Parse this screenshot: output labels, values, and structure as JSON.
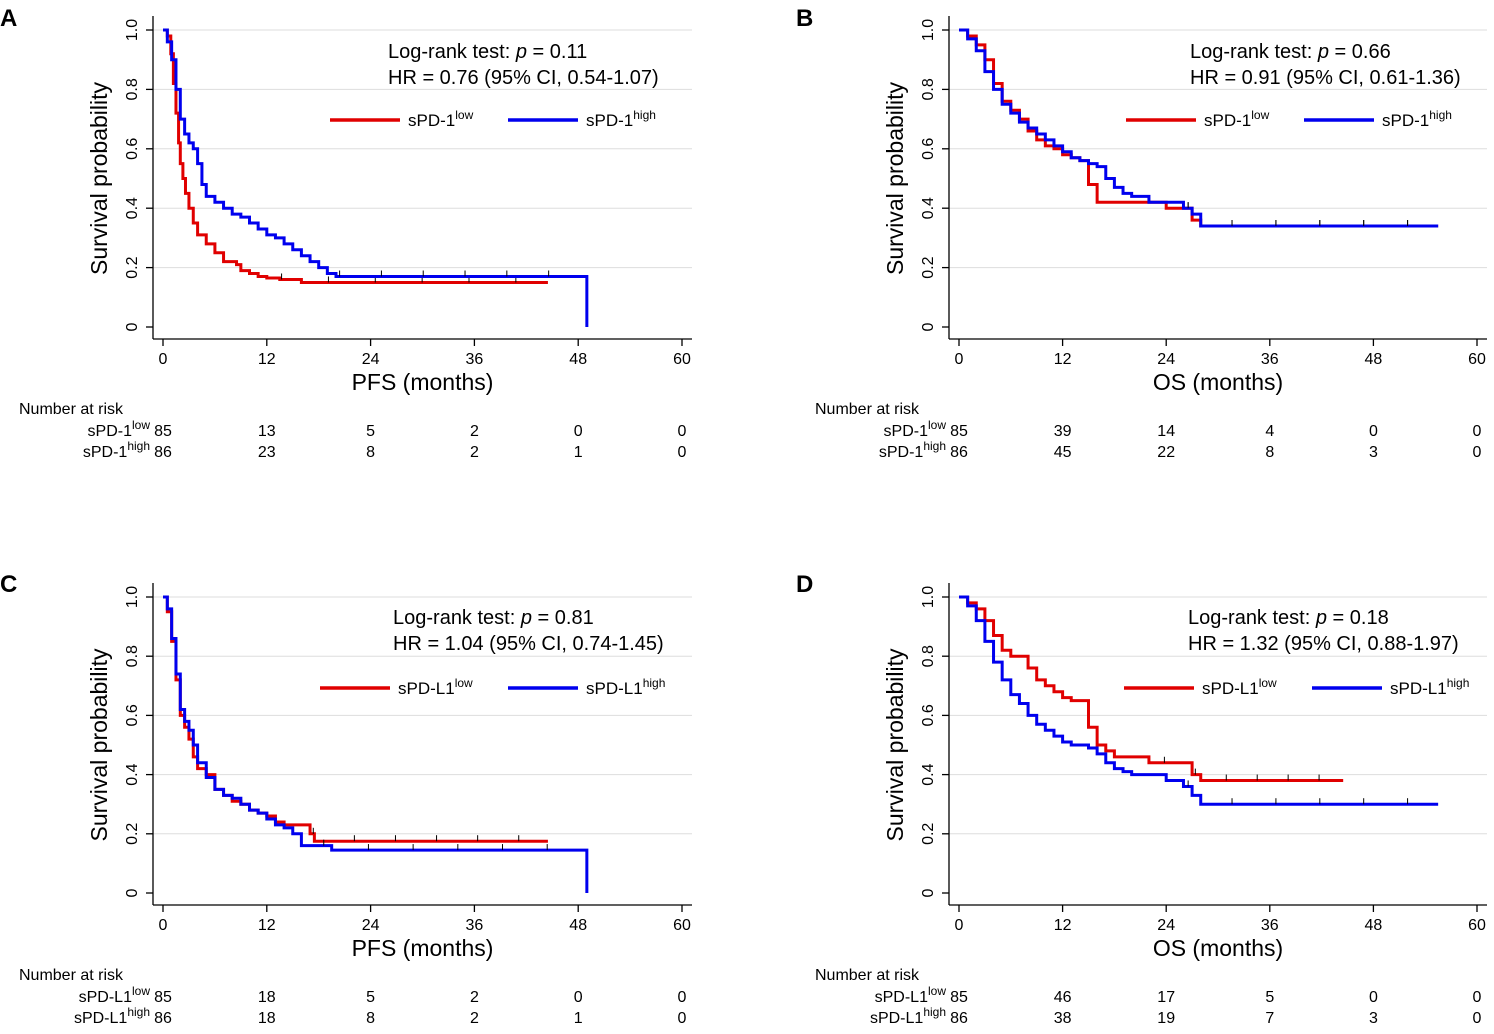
{
  "chart_data": [
    {
      "panel": "A",
      "type": "line",
      "subtype": "kaplan-meier",
      "xlabel": "PFS (months)",
      "ylabel": "Survival probability",
      "xlim": [
        0,
        60
      ],
      "ylim": [
        0,
        1
      ],
      "xticks": [
        "0",
        "12",
        "24",
        "36",
        "48",
        "60"
      ],
      "yticks": [
        "0",
        "0.2",
        "0.4",
        "0.6",
        "0.8",
        "1.0"
      ],
      "stat_line1_prefix": "Log-rank test: ",
      "stat_p_label": "p",
      "stat_line1_value": " = 0.11",
      "stat_line2": "HR = 0.76 (95% CI, 0.54-1.07)",
      "legend_position": "top-right",
      "series": [
        {
          "name": "sPD-1",
          "sup": "low",
          "color": "#e00000",
          "x": [
            0,
            0.5,
            0.9,
            1.2,
            1.5,
            1.8,
            2.0,
            2.3,
            2.6,
            3.0,
            3.5,
            4.0,
            5.0,
            6.0,
            7.0,
            8.5,
            9.0,
            10.0,
            11.0,
            12.0,
            13.5,
            16.0,
            44.5
          ],
          "y": [
            1.0,
            0.98,
            0.92,
            0.82,
            0.72,
            0.62,
            0.55,
            0.5,
            0.45,
            0.4,
            0.35,
            0.31,
            0.28,
            0.25,
            0.22,
            0.21,
            0.19,
            0.18,
            0.17,
            0.165,
            0.16,
            0.15,
            0.15
          ]
        },
        {
          "name": "sPD-1",
          "sup": "high",
          "color": "#0000ee",
          "x": [
            0,
            0.5,
            1.0,
            1.5,
            2.0,
            2.5,
            3.0,
            3.5,
            4.0,
            4.5,
            5.0,
            6.0,
            7.0,
            8.0,
            9.0,
            10.0,
            11.0,
            12.0,
            13.0,
            14.0,
            15.0,
            16.0,
            17.0,
            18.0,
            19.0,
            20.0,
            49.0,
            49.0
          ],
          "y": [
            1.0,
            0.96,
            0.9,
            0.8,
            0.7,
            0.65,
            0.62,
            0.6,
            0.55,
            0.48,
            0.44,
            0.42,
            0.4,
            0.38,
            0.37,
            0.35,
            0.33,
            0.31,
            0.3,
            0.28,
            0.26,
            0.24,
            0.22,
            0.2,
            0.18,
            0.17,
            0.17,
            0.0
          ]
        }
      ],
      "risk_table": {
        "title": "Number at risk",
        "rows": [
          {
            "name": "sPD-1",
            "sup": "low",
            "values": [
              "85",
              "13",
              "5",
              "2",
              "0",
              "0"
            ]
          },
          {
            "name": "sPD-1",
            "sup": "high",
            "values": [
              "86",
              "23",
              "8",
              "2",
              "1",
              "0"
            ]
          }
        ]
      }
    },
    {
      "panel": "B",
      "type": "line",
      "subtype": "kaplan-meier",
      "xlabel": "OS (months)",
      "ylabel": "Survival probability",
      "xlim": [
        0,
        60
      ],
      "ylim": [
        0,
        1
      ],
      "xticks": [
        "0",
        "12",
        "24",
        "36",
        "48",
        "60"
      ],
      "yticks": [
        "0",
        "0.2",
        "0.4",
        "0.6",
        "0.8",
        "1.0"
      ],
      "stat_line1_prefix": "Log-rank test: ",
      "stat_p_label": "p",
      "stat_line1_value": " = 0.66",
      "stat_line2": "HR = 0.91 (95% CI, 0.61-1.36)",
      "legend_position": "top-right",
      "series": [
        {
          "name": "sPD-1",
          "sup": "low",
          "color": "#e00000",
          "x": [
            0,
            1,
            2,
            3,
            4,
            5,
            6,
            7,
            8,
            9,
            10,
            11,
            12,
            13,
            14,
            15,
            16,
            18,
            20,
            22,
            24,
            26,
            27,
            28,
            55.5
          ],
          "y": [
            1.0,
            0.98,
            0.95,
            0.9,
            0.82,
            0.76,
            0.73,
            0.7,
            0.66,
            0.63,
            0.61,
            0.6,
            0.58,
            0.57,
            0.56,
            0.48,
            0.42,
            0.42,
            0.42,
            0.42,
            0.4,
            0.4,
            0.36,
            0.34,
            0.34
          ]
        },
        {
          "name": "sPD-1",
          "sup": "high",
          "color": "#0000ee",
          "x": [
            0,
            1,
            2,
            3,
            4,
            5,
            6,
            7,
            8,
            9,
            10,
            11,
            12,
            13,
            14,
            15,
            16,
            17,
            18,
            19,
            20,
            22,
            24,
            26,
            27,
            28,
            55.5
          ],
          "y": [
            1.0,
            0.97,
            0.93,
            0.86,
            0.8,
            0.75,
            0.72,
            0.69,
            0.67,
            0.65,
            0.63,
            0.61,
            0.59,
            0.57,
            0.56,
            0.55,
            0.54,
            0.5,
            0.47,
            0.45,
            0.44,
            0.42,
            0.42,
            0.4,
            0.38,
            0.34,
            0.34
          ]
        }
      ],
      "risk_table": {
        "title": "Number at risk",
        "rows": [
          {
            "name": "sPD-1",
            "sup": "low",
            "values": [
              "85",
              "39",
              "14",
              "4",
              "0",
              "0"
            ]
          },
          {
            "name": "sPD-1",
            "sup": "high",
            "values": [
              "86",
              "45",
              "22",
              "8",
              "3",
              "0"
            ]
          }
        ]
      }
    },
    {
      "panel": "C",
      "type": "line",
      "subtype": "kaplan-meier",
      "xlabel": "PFS (months)",
      "ylabel": "Survival probability",
      "xlim": [
        0,
        60
      ],
      "ylim": [
        0,
        1
      ],
      "xticks": [
        "0",
        "12",
        "24",
        "36",
        "48",
        "60"
      ],
      "yticks": [
        "0",
        "0.2",
        "0.4",
        "0.6",
        "0.8",
        "1.0"
      ],
      "stat_line1_prefix": "Log-rank test:  ",
      "stat_p_label": "p",
      "stat_line1_value": " = 0.81",
      "stat_line2": "HR = 1.04 (95% CI, 0.74-1.45)",
      "legend_position": "top-right",
      "series": [
        {
          "name": "sPD-L1",
          "sup": "low",
          "color": "#e00000",
          "x": [
            0,
            0.5,
            1.0,
            1.5,
            2.0,
            2.5,
            3.0,
            3.5,
            4.0,
            5.0,
            6.0,
            7.0,
            8.0,
            9.0,
            10.0,
            11.0,
            12.0,
            13.0,
            14.0,
            15.0,
            16.0,
            17.0,
            17.5,
            44.5
          ],
          "y": [
            1.0,
            0.95,
            0.85,
            0.72,
            0.6,
            0.56,
            0.52,
            0.46,
            0.42,
            0.4,
            0.35,
            0.33,
            0.31,
            0.3,
            0.28,
            0.27,
            0.26,
            0.24,
            0.23,
            0.23,
            0.23,
            0.2,
            0.175,
            0.175
          ]
        },
        {
          "name": "sPD-L1",
          "sup": "high",
          "color": "#0000ee",
          "x": [
            0,
            0.5,
            1.0,
            1.5,
            2.0,
            2.5,
            3.0,
            3.5,
            4.0,
            5.0,
            6.0,
            7.0,
            8.0,
            9.0,
            10.0,
            11.0,
            12.0,
            13.0,
            14.0,
            15.0,
            16.0,
            18.0,
            19.5,
            49.0,
            49.0
          ],
          "y": [
            1.0,
            0.96,
            0.86,
            0.74,
            0.62,
            0.58,
            0.55,
            0.5,
            0.44,
            0.39,
            0.35,
            0.33,
            0.32,
            0.3,
            0.28,
            0.27,
            0.25,
            0.23,
            0.22,
            0.2,
            0.16,
            0.16,
            0.145,
            0.145,
            0.0
          ]
        }
      ],
      "risk_table": {
        "title": "Number at risk",
        "rows": [
          {
            "name": "sPD-L1",
            "sup": "low",
            "values": [
              "85",
              "18",
              "5",
              "2",
              "0",
              "0"
            ]
          },
          {
            "name": "sPD-L1",
            "sup": "high",
            "values": [
              "86",
              "18",
              "8",
              "2",
              "1",
              "0"
            ]
          }
        ]
      }
    },
    {
      "panel": "D",
      "type": "line",
      "subtype": "kaplan-meier",
      "xlabel": "OS (months)",
      "ylabel": "Survival probability",
      "xlim": [
        0,
        60
      ],
      "ylim": [
        0,
        1
      ],
      "xticks": [
        "0",
        "12",
        "24",
        "36",
        "48",
        "60"
      ],
      "yticks": [
        "0",
        "0.2",
        "0.4",
        "0.6",
        "0.8",
        "1.0"
      ],
      "stat_line1_prefix": "Log-rank test: ",
      "stat_p_label": "p",
      "stat_line1_value": " = 0.18",
      "stat_line2": "HR = 1.32 (95% CI, 0.88-1.97)",
      "legend_position": "top-right",
      "series": [
        {
          "name": "sPD-L1",
          "sup": "low",
          "color": "#e00000",
          "x": [
            0,
            1,
            2,
            3,
            4,
            5,
            6,
            7,
            8,
            9,
            10,
            11,
            12,
            13,
            14,
            15,
            16,
            17,
            18,
            20,
            22,
            24,
            27,
            28,
            44.5
          ],
          "y": [
            1.0,
            0.98,
            0.96,
            0.92,
            0.87,
            0.82,
            0.8,
            0.8,
            0.76,
            0.72,
            0.7,
            0.68,
            0.66,
            0.65,
            0.65,
            0.56,
            0.5,
            0.48,
            0.46,
            0.46,
            0.44,
            0.44,
            0.4,
            0.38,
            0.38
          ]
        },
        {
          "name": "sPD-L1",
          "sup": "high",
          "color": "#0000ee",
          "x": [
            0,
            1,
            2,
            3,
            4,
            5,
            6,
            7,
            8,
            9,
            10,
            11,
            12,
            13,
            14,
            15,
            16,
            17,
            18,
            19,
            20,
            22,
            24,
            26,
            27,
            28,
            55.5
          ],
          "y": [
            1.0,
            0.97,
            0.92,
            0.85,
            0.78,
            0.72,
            0.67,
            0.64,
            0.6,
            0.57,
            0.55,
            0.53,
            0.51,
            0.5,
            0.5,
            0.49,
            0.47,
            0.44,
            0.42,
            0.41,
            0.4,
            0.4,
            0.38,
            0.36,
            0.33,
            0.3,
            0.3
          ]
        }
      ],
      "risk_table": {
        "title": "Number at risk",
        "rows": [
          {
            "name": "sPD-L1",
            "sup": "low",
            "values": [
              "85",
              "46",
              "17",
              "5",
              "0",
              "0"
            ]
          },
          {
            "name": "sPD-L1",
            "sup": "high",
            "values": [
              "86",
              "38",
              "19",
              "7",
              "3",
              "0"
            ]
          }
        ]
      }
    }
  ]
}
